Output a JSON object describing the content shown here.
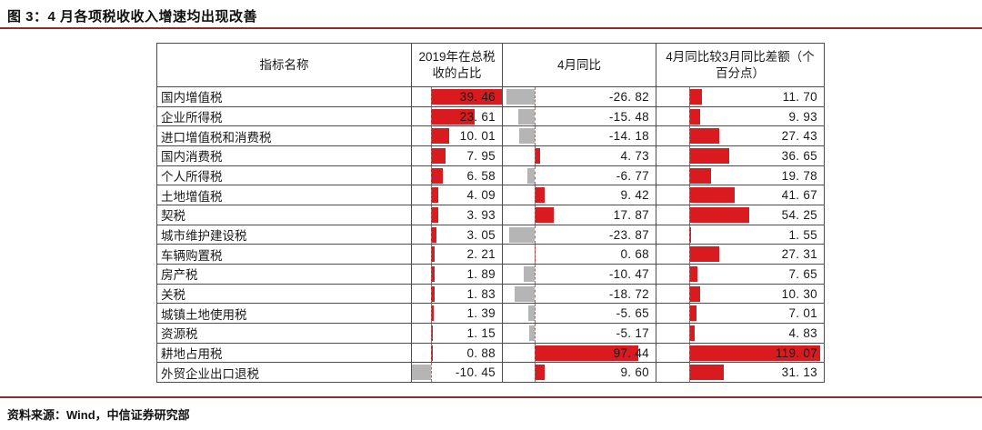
{
  "figure": {
    "title": "图 3：4 月各项税收收入增速均出现改善",
    "source": "资料来源：Wind，中信证券研究部"
  },
  "colors": {
    "positive_bar": "#d91a1e",
    "negative_bar": "#b5b5b5",
    "rule": "#8c2e2e",
    "grid_line": "#4d4d4d"
  },
  "table": {
    "columns": [
      "指标名称",
      "2019年在总税收的占比",
      "4月同比",
      "4月同比较3月同比差额（个百分点）"
    ]
  },
  "chart_data": {
    "type": "table",
    "title": "4 月各项税收收入增速均出现改善",
    "columns": [
      "指标名称",
      "2019年在总税收的占比",
      "4月同比",
      "4月同比较3月同比差额（个百分点）"
    ],
    "bar_style": "in-cell data bars: positive values red bars extending right of dashed axis, negative values gray bars extending left",
    "rows": [
      {
        "name": "国内增值税",
        "share": 39.46,
        "apr_yoy": -26.82,
        "diff": 11.7
      },
      {
        "name": "企业所得税",
        "share": 23.61,
        "apr_yoy": -15.48,
        "diff": 9.93
      },
      {
        "name": "进口增值税和消费税",
        "share": 10.01,
        "apr_yoy": -14.18,
        "diff": 27.43
      },
      {
        "name": "国内消费税",
        "share": 7.95,
        "apr_yoy": 4.73,
        "diff": 36.65
      },
      {
        "name": "个人所得税",
        "share": 6.58,
        "apr_yoy": -6.77,
        "diff": 19.78
      },
      {
        "name": "土地增值税",
        "share": 4.09,
        "apr_yoy": 9.42,
        "diff": 41.67
      },
      {
        "name": "契税",
        "share": 3.93,
        "apr_yoy": 17.87,
        "diff": 54.25
      },
      {
        "name": "城市维护建设税",
        "share": 3.05,
        "apr_yoy": -23.87,
        "diff": 1.55
      },
      {
        "name": "车辆购置税",
        "share": 2.21,
        "apr_yoy": 0.68,
        "diff": 27.31
      },
      {
        "name": "房产税",
        "share": 1.89,
        "apr_yoy": -10.47,
        "diff": 7.65
      },
      {
        "name": "关税",
        "share": 1.83,
        "apr_yoy": -18.72,
        "diff": 10.3
      },
      {
        "name": "城镇土地使用税",
        "share": 1.39,
        "apr_yoy": -5.65,
        "diff": 7.01
      },
      {
        "name": "资源税",
        "share": 1.15,
        "apr_yoy": -5.17,
        "diff": 4.83
      },
      {
        "name": "耕地占用税",
        "share": 0.88,
        "apr_yoy": 97.44,
        "diff": 119.07
      },
      {
        "name": "外贸企业出口退税",
        "share": -10.45,
        "apr_yoy": 9.6,
        "diff": 31.13
      }
    ]
  }
}
